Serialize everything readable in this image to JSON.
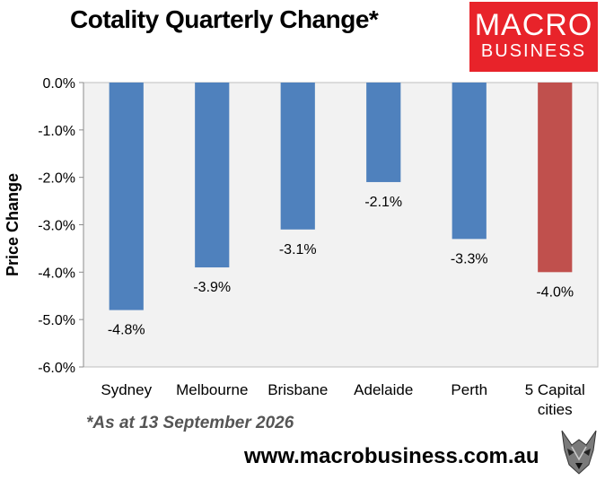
{
  "header": {
    "title": "Cotality Quarterly Change*",
    "logo_line1": "MACRO",
    "logo_line2": "BUSINESS"
  },
  "footer": {
    "footnote": "*As at 13 September 2026",
    "url": "www.macrobusiness.com.au",
    "wolf_icon": "wolf-logo-icon"
  },
  "colors": {
    "bar_default": "#4f81bd",
    "bar_highlight": "#c0504d",
    "plot_bg": "#f2f2f2",
    "logo_bg": "#e8232a"
  },
  "chart_data": {
    "type": "bar",
    "title": "Cotality Quarterly Change*",
    "ylabel": "Price Change",
    "xlabel": "",
    "categories": [
      "Sydney",
      "Melbourne",
      "Brisbane",
      "Adelaide",
      "Perth",
      "5 Capital cities"
    ],
    "category_lines": [
      [
        "Sydney"
      ],
      [
        "Melbourne"
      ],
      [
        "Brisbane"
      ],
      [
        "Adelaide"
      ],
      [
        "Perth"
      ],
      [
        "5 Capital",
        "cities"
      ]
    ],
    "values": [
      -4.8,
      -3.9,
      -3.1,
      -2.1,
      -3.3,
      -4.0
    ],
    "data_labels": [
      "-4.8%",
      "-3.9%",
      "-3.1%",
      "-2.1%",
      "-3.3%",
      "-4.0%"
    ],
    "highlight_index": 5,
    "ylim": [
      -6.0,
      0.0
    ],
    "yticks": [
      0,
      -1,
      -2,
      -3,
      -4,
      -5,
      -6
    ],
    "ytick_labels": [
      "0.0%",
      "-1.0%",
      "-2.0%",
      "-3.0%",
      "-4.0%",
      "-5.0%",
      "-6.0%"
    ],
    "grid": false,
    "legend": "none"
  }
}
